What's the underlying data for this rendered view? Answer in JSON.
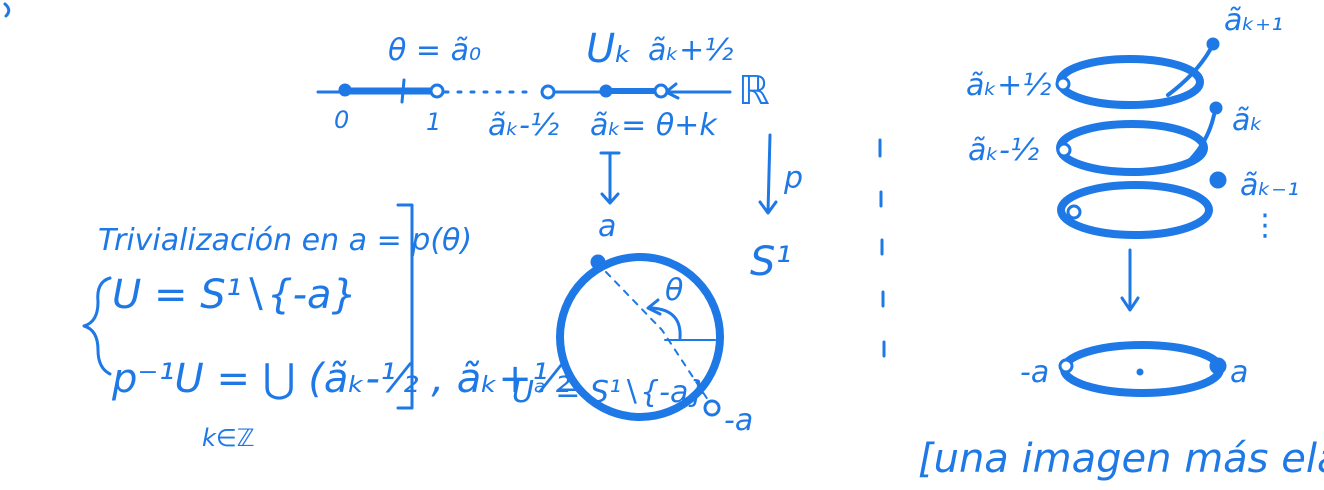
{
  "colors": {
    "ink": "#1e78e6",
    "background": "#ffffff"
  },
  "real_line": {
    "theta_label": "θ = ã₀",
    "tick_0": "0",
    "tick_1": "1",
    "U_k": "Uₖ",
    "a_k_plus_half": "ãₖ+½",
    "a_k_minus_half": "ãₖ-½",
    "a_k": "ãₖ= θ+k",
    "R": "ℝ",
    "p": "p"
  },
  "trivialization": {
    "heading": "Trivialización en a = p(θ)",
    "line1": "U = S¹∖{-a}",
    "line2": "p⁻¹U = ⋃ (ãₖ-½ , ãₖ+½",
    "index": "k∈ℤ"
  },
  "circle": {
    "a": "a",
    "theta": "θ",
    "S1": "S¹",
    "U_a": "Uᵃ = S¹∖{-a}",
    "minus_a": "-a"
  },
  "helix": {
    "a_k_plus_1": "ãₖ₊₁",
    "a_k_plus_half": "ãₖ+½",
    "a_k": "ãₖ",
    "a_k_minus_half": "ãₖ-½",
    "a_k_minus_1": "ãₖ₋₁",
    "dots": "⋮",
    "minus_a": "-a",
    "a": "a",
    "caption": "[una imagen más elástica."
  }
}
